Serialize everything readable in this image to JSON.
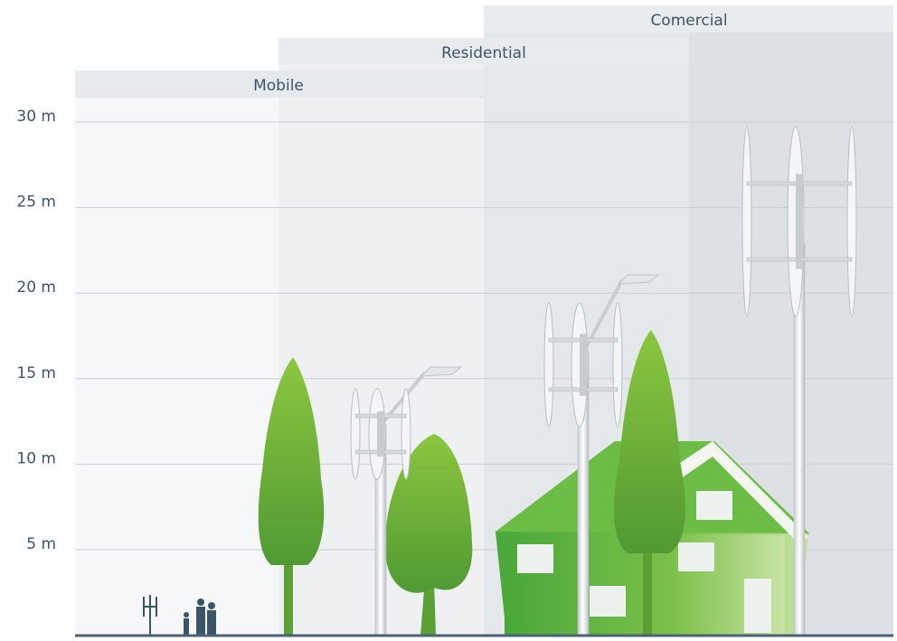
{
  "segments": [
    {
      "label": "Mobile"
    },
    {
      "label": "Residential"
    },
    {
      "label": "Comercial"
    }
  ],
  "scale": {
    "ticks": [
      "30 m",
      "25 m",
      "20 m",
      "15 m",
      "10 m",
      "5 m"
    ]
  }
}
